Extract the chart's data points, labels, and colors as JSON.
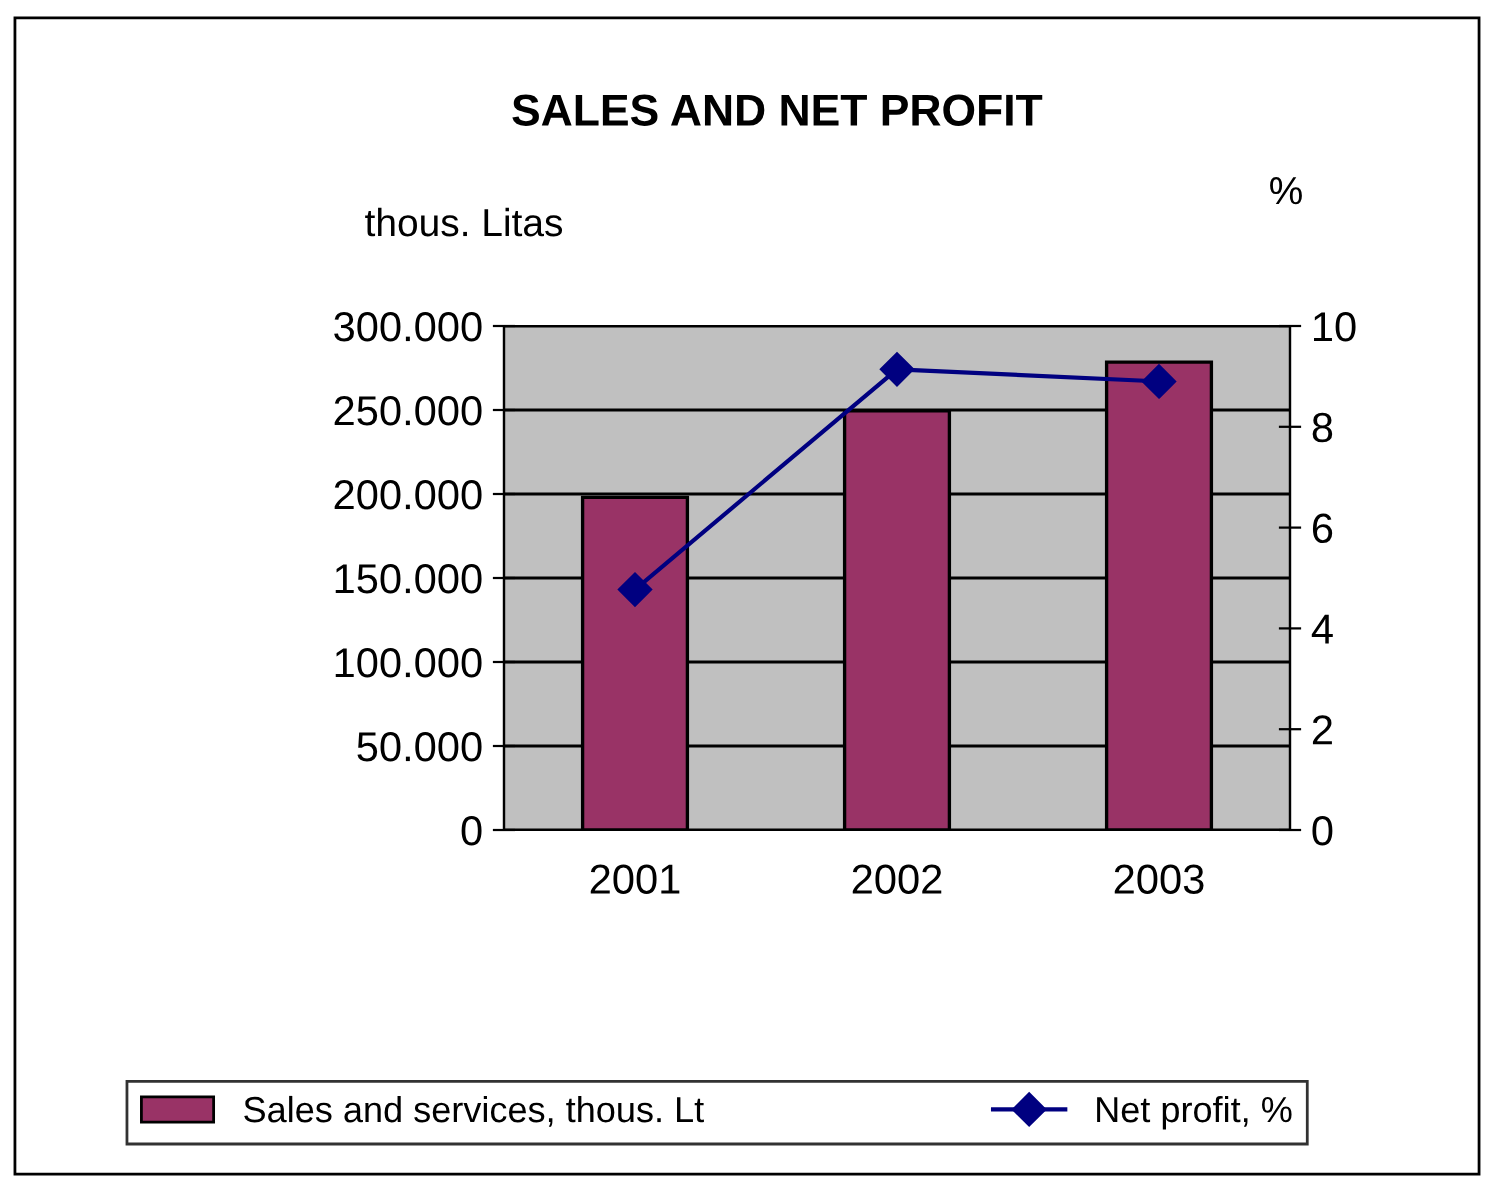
{
  "chart_data": {
    "type": "bar",
    "title": "SALES AND NET PROFIT",
    "ylabel": "thous. Litas",
    "y2label": "%",
    "categories": [
      "2001",
      "2002",
      "2003"
    ],
    "series": [
      {
        "name": "Sales and services, thous. Lt",
        "color": "#993366",
        "values": [
          198000,
          249500,
          278500
        ]
      },
      {
        "name": "Net profit, %",
        "type": "line",
        "axis": "y2",
        "color": "#000080",
        "marker": "diamond",
        "values": [
          4.77,
          9.14,
          8.9
        ]
      }
    ],
    "ylim": [
      0,
      300000
    ],
    "yticks": [
      {
        "value": 0,
        "label": "0"
      },
      {
        "value": 50000,
        "label": "50.000"
      },
      {
        "value": 100000,
        "label": "100.000"
      },
      {
        "value": 150000,
        "label": "150.000"
      },
      {
        "value": 200000,
        "label": "200.000"
      },
      {
        "value": 250000,
        "label": "250.000"
      },
      {
        "value": 300000,
        "label": "300.000"
      }
    ],
    "y2lim": [
      0,
      10
    ],
    "y2ticks": [
      0,
      2,
      4,
      6,
      8,
      10
    ],
    "grid": "y",
    "legend": "bottom"
  }
}
